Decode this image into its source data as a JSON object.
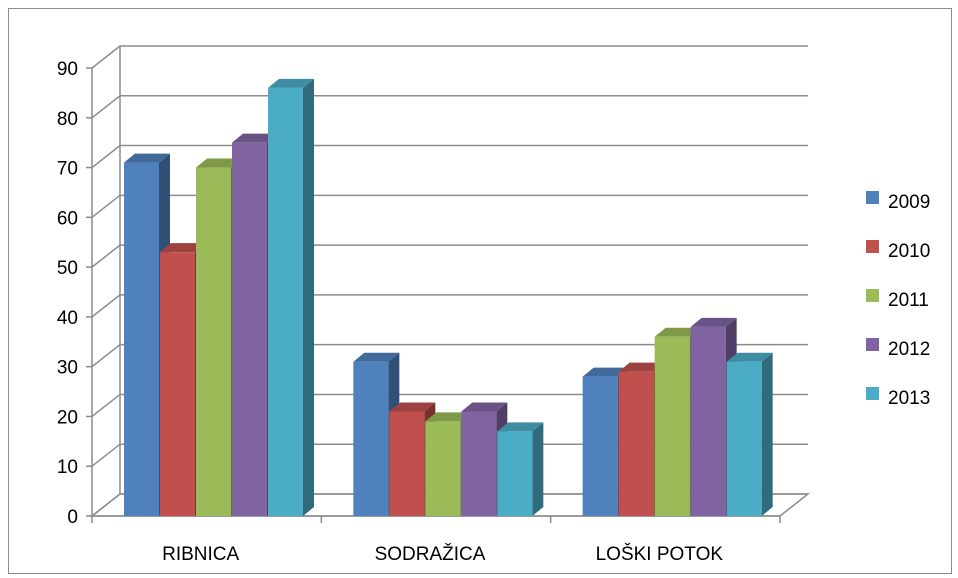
{
  "chart_data": {
    "type": "bar",
    "style": "3d-clustered-column",
    "categories": [
      "RIBNICA",
      "SODRAŽICA",
      "LOŠKI POTOK"
    ],
    "series": [
      {
        "name": "2009",
        "values": [
          71,
          31,
          28
        ],
        "color": "#4f81bd"
      },
      {
        "name": "2010",
        "values": [
          53,
          21,
          29
        ],
        "color": "#c0504d"
      },
      {
        "name": "2011",
        "values": [
          70,
          19,
          36
        ],
        "color": "#9bbb59"
      },
      {
        "name": "2012",
        "values": [
          75,
          21,
          38
        ],
        "color": "#8064a2"
      },
      {
        "name": "2013",
        "values": [
          86,
          17,
          31
        ],
        "color": "#4bacc6"
      }
    ],
    "ylim": [
      0,
      90
    ],
    "yticks": [
      0,
      10,
      20,
      30,
      40,
      50,
      60,
      70,
      80,
      90
    ],
    "grid": true,
    "legend": "right",
    "title": "",
    "xlabel": "",
    "ylabel": ""
  }
}
